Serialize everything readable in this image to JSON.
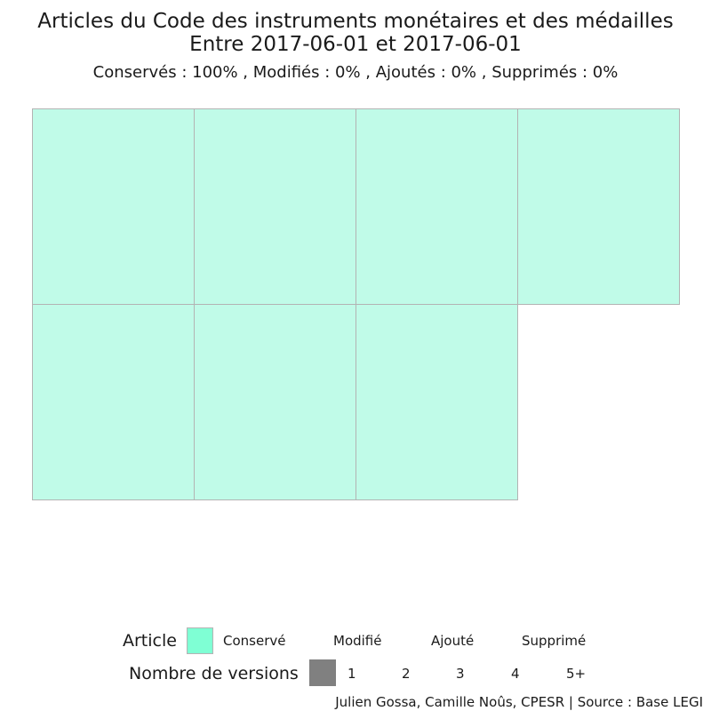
{
  "chart_data": {
    "type": "waffle",
    "title_line1": "Articles du Code des instruments monétaires et des médailles",
    "title_line2": "Entre 2017-06-01 et 2017-06-01",
    "subtitle": "Conservés :  100% , Modifiés :  0% , Ajoutés :  0% , Supprimés :  0%",
    "summary": {
      "conserves_pct": 100,
      "modifies_pct": 0,
      "ajoutes_pct": 0,
      "supprimes_pct": 0
    },
    "columns": 4,
    "cells": [
      {
        "status": "Conservé",
        "versions": 1
      },
      {
        "status": "Conservé",
        "versions": 1
      },
      {
        "status": "Conservé",
        "versions": 1
      },
      {
        "status": "Conservé",
        "versions": 1
      },
      {
        "status": "Conservé",
        "versions": 1
      },
      {
        "status": "Conservé",
        "versions": 1
      },
      {
        "status": "Conservé",
        "versions": 1
      }
    ],
    "colors": {
      "Conservé": "#7fffd4",
      "cell_fill": "#c0fbe8",
      "cell_border": "#b3b3b3",
      "versions_swatch": "#808080"
    },
    "legend_article": {
      "title": "Article",
      "items": [
        "Conservé",
        "Modifié",
        "Ajouté",
        "Supprimé"
      ]
    },
    "legend_versions": {
      "title": "Nombre de versions",
      "items": [
        "1",
        "2",
        "3",
        "4",
        "5+"
      ]
    },
    "caption": "Julien Gossa, Camille Noûs, CPESR  |  Source : Base LEGI"
  }
}
